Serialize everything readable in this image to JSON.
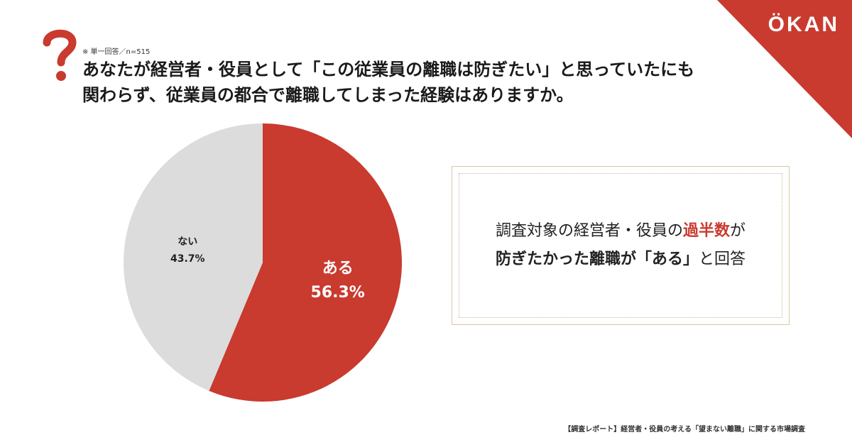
{
  "brand": {
    "logo_text": "ÖKAN",
    "accent_color": "#c93a2f"
  },
  "question": {
    "note": "※ 単一回答／n=515",
    "line1": "あなたが経営者・役員として「この従業員の離職は防ぎたい」と思っていたにも",
    "line2": "関わらず、従業員の都合で離職してしまった経験はありますか。"
  },
  "chart_data": {
    "type": "pie",
    "title": "",
    "slices": [
      {
        "label": "ある",
        "value": 56.3,
        "display": "56.3%",
        "color": "#c93a2f",
        "text_color": "#ffffff"
      },
      {
        "label": "ない",
        "value": 43.7,
        "display": "43.7%",
        "color": "#dcdcdc",
        "text_color": "#222222"
      }
    ],
    "start_angle": "12 o'clock",
    "direction": "clockwise",
    "legend": "none"
  },
  "callout": {
    "line1_before": "調査対象の経営者・役員の",
    "line1_highlight": "過半数",
    "line1_after": "が",
    "line2_bold": "防ぎたかった離職が「ある」",
    "line2_after": "と回答"
  },
  "footer": {
    "source": "【調査レポート】経営者・役員の考える「望まない離職」に関する市場調査"
  }
}
